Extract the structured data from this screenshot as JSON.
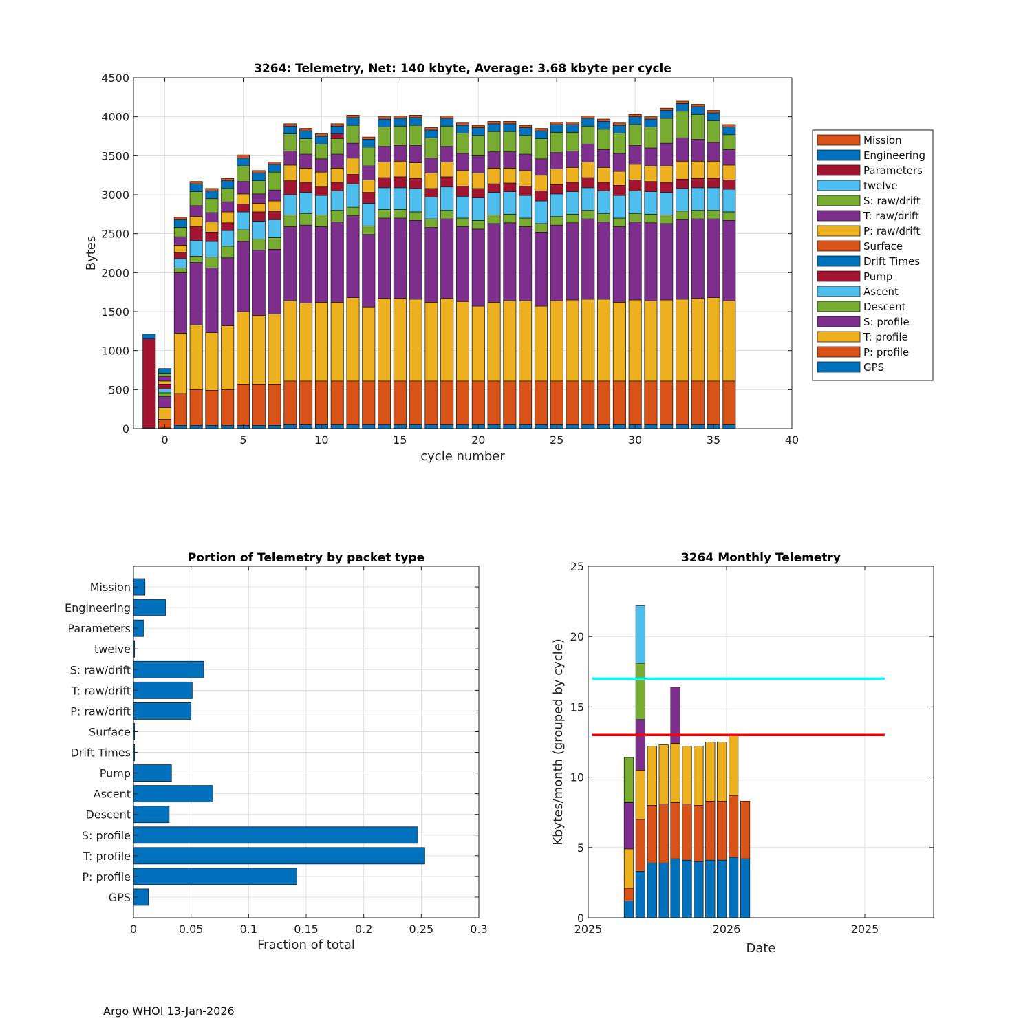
{
  "footer": "Argo WHOI 13-Jan-2026",
  "colors": {
    "GPS": "#0072BD",
    "P: profile": "#D95319",
    "T: profile": "#EDB120",
    "S: profile": "#7E2F8E",
    "Descent": "#77AC30",
    "Ascent": "#4DBEEE",
    "Pump": "#A2142F",
    "Drift Times": "#0072BD",
    "Surface": "#D95319",
    "P: raw/drift": "#EDB120",
    "T: raw/drift": "#7E2F8E",
    "S: raw/drift": "#77AC30",
    "twelve": "#4DBEEE",
    "Parameters": "#A2142F",
    "Engineering": "#0072BD",
    "Mission": "#D95319",
    "cyan_line": "#00FFFF",
    "red_line": "#FF0000"
  },
  "chart_data": [
    {
      "id": "telemetry",
      "type": "bar",
      "stacked": true,
      "title": "3264: Telemetry, Net:    140 kbyte,  Average: 3.68 kbyte per cycle",
      "xlabel": "cycle number",
      "ylabel": "Bytes",
      "xlim": [
        -2,
        40
      ],
      "ylim": [
        0,
        4500
      ],
      "xticks": [
        0,
        5,
        10,
        15,
        20,
        25,
        30,
        35,
        40
      ],
      "yticks": [
        0,
        500,
        1000,
        1500,
        2000,
        2500,
        3000,
        3500,
        4000,
        4500
      ],
      "grid": true,
      "legend_position": "outside-right",
      "legend": [
        "Mission",
        "Engineering",
        "Parameters",
        "twelve",
        "S: raw/drift",
        "T: raw/drift",
        "P: raw/drift",
        "Surface",
        "Drift Times",
        "Pump",
        "Ascent",
        "Descent",
        "S: profile",
        "T: profile",
        "P: profile",
        "GPS"
      ],
      "stack_order": [
        "GPS",
        "P: profile",
        "T: profile",
        "S: profile",
        "Descent",
        "Ascent",
        "Pump",
        "Drift Times",
        "Surface",
        "P: raw/drift",
        "T: raw/drift",
        "S: raw/drift",
        "twelve",
        "Parameters",
        "Engineering",
        "Mission"
      ],
      "cycles": [
        -1,
        0,
        1,
        2,
        3,
        4,
        5,
        6,
        7,
        8,
        9,
        10,
        11,
        12,
        13,
        14,
        15,
        16,
        17,
        18,
        19,
        20,
        21,
        22,
        23,
        24,
        25,
        26,
        27,
        28,
        29,
        30,
        31,
        32,
        33,
        34,
        35,
        36
      ],
      "series": {
        "GPS": [
          10,
          10,
          40,
          40,
          40,
          40,
          40,
          40,
          40,
          50,
          50,
          50,
          50,
          50,
          50,
          50,
          50,
          50,
          50,
          50,
          50,
          50,
          50,
          50,
          50,
          50,
          50,
          50,
          50,
          50,
          50,
          50,
          50,
          50,
          50,
          50,
          50,
          50
        ],
        "P: profile": [
          0,
          110,
          410,
          460,
          450,
          460,
          530,
          530,
          530,
          560,
          560,
          560,
          560,
          560,
          560,
          560,
          560,
          560,
          560,
          560,
          560,
          560,
          560,
          560,
          560,
          560,
          560,
          560,
          560,
          560,
          560,
          560,
          560,
          560,
          560,
          560,
          560,
          560
        ],
        "T: profile": [
          0,
          150,
          770,
          830,
          740,
          820,
          930,
          880,
          900,
          1030,
          1000,
          1010,
          1010,
          1070,
          950,
          1060,
          1060,
          1050,
          1010,
          1060,
          1020,
          960,
          1010,
          1030,
          1030,
          960,
          1030,
          1040,
          1050,
          1050,
          1010,
          1040,
          1030,
          1040,
          1050,
          1060,
          1070,
          1030
        ],
        "S: profile": [
          0,
          140,
          780,
          800,
          830,
          870,
          900,
          840,
          830,
          950,
          1000,
          970,
          1030,
          1050,
          930,
          1030,
          1030,
          1010,
          960,
          1020,
          960,
          990,
          1010,
          1000,
          950,
          950,
          970,
          990,
          1030,
          990,
          970,
          1000,
          1000,
          980,
          1020,
          1020,
          1010,
          1030
        ],
        "Descent": [
          0,
          50,
          60,
          80,
          140,
          150,
          150,
          140,
          150,
          150,
          150,
          150,
          150,
          110,
          110,
          110,
          110,
          110,
          110,
          110,
          110,
          110,
          110,
          110,
          110,
          110,
          110,
          110,
          110,
          110,
          110,
          110,
          110,
          110,
          110,
          110,
          110,
          110
        ],
        "Ascent": [
          0,
          50,
          120,
          200,
          200,
          200,
          230,
          230,
          230,
          260,
          270,
          250,
          250,
          300,
          290,
          280,
          280,
          300,
          280,
          300,
          280,
          290,
          290,
          290,
          290,
          290,
          290,
          290,
          290,
          290,
          290,
          290,
          290,
          290,
          290,
          290,
          290,
          290
        ],
        "Pump": [
          1140,
          60,
          80,
          180,
          120,
          100,
          100,
          120,
          110,
          180,
          130,
          110,
          110,
          120,
          140,
          130,
          140,
          130,
          110,
          130,
          130,
          120,
          110,
          110,
          120,
          130,
          120,
          120,
          130,
          110,
          130,
          140,
          130,
          130,
          120,
          120,
          120,
          120
        ],
        "Drift Times": [
          0,
          0,
          0,
          0,
          0,
          0,
          0,
          0,
          0,
          0,
          0,
          0,
          0,
          0,
          0,
          0,
          0,
          0,
          0,
          0,
          0,
          0,
          0,
          0,
          0,
          0,
          0,
          0,
          0,
          0,
          0,
          0,
          0,
          0,
          0,
          0,
          0,
          0
        ],
        "Surface": [
          0,
          0,
          0,
          0,
          0,
          0,
          0,
          0,
          0,
          0,
          0,
          0,
          0,
          0,
          0,
          0,
          0,
          0,
          0,
          0,
          0,
          0,
          0,
          0,
          0,
          0,
          0,
          0,
          0,
          0,
          0,
          0,
          0,
          0,
          0,
          0,
          0,
          0
        ],
        "P: raw/drift": [
          0,
          40,
          90,
          130,
          130,
          140,
          130,
          110,
          130,
          200,
          180,
          190,
          180,
          210,
          160,
          200,
          200,
          200,
          200,
          190,
          200,
          200,
          200,
          190,
          200,
          200,
          200,
          190,
          200,
          190,
          180,
          200,
          200,
          210,
          230,
          220,
          220,
          190
        ],
        "T: raw/drift": [
          0,
          60,
          110,
          140,
          120,
          130,
          160,
          120,
          140,
          180,
          180,
          170,
          180,
          190,
          180,
          200,
          200,
          220,
          190,
          200,
          220,
          220,
          210,
          210,
          210,
          210,
          210,
          210,
          230,
          230,
          230,
          240,
          230,
          290,
          300,
          280,
          240,
          200
        ],
        "S: raw/drift": [
          0,
          40,
          120,
          180,
          180,
          170,
          200,
          170,
          230,
          220,
          200,
          190,
          200,
          230,
          240,
          250,
          250,
          260,
          260,
          260,
          260,
          260,
          260,
          260,
          240,
          260,
          260,
          240,
          230,
          260,
          260,
          270,
          270,
          320,
          340,
          320,
          280,
          190
        ],
        "twelve": [
          0,
          0,
          0,
          0,
          0,
          0,
          0,
          0,
          0,
          0,
          0,
          0,
          0,
          0,
          0,
          0,
          0,
          0,
          0,
          0,
          0,
          0,
          0,
          0,
          0,
          0,
          0,
          0,
          0,
          0,
          0,
          0,
          0,
          0,
          0,
          0,
          0,
          0
        ],
        "Parameters": [
          0,
          0,
          0,
          0,
          0,
          0,
          0,
          0,
          0,
          0,
          0,
          0,
          60,
          0,
          0,
          0,
          0,
          0,
          0,
          0,
          0,
          0,
          0,
          0,
          0,
          0,
          0,
          0,
          0,
          0,
          0,
          0,
          0,
          0,
          0,
          0,
          0,
          0
        ],
        "Engineering": [
          60,
          60,
          100,
          100,
          100,
          100,
          100,
          100,
          100,
          100,
          100,
          100,
          100,
          100,
          100,
          100,
          100,
          100,
          100,
          100,
          100,
          100,
          100,
          100,
          100,
          100,
          100,
          100,
          100,
          100,
          100,
          100,
          100,
          100,
          100,
          100,
          100,
          100
        ],
        "Mission": [
          0,
          0,
          30,
          30,
          30,
          30,
          40,
          30,
          30,
          30,
          30,
          30,
          30,
          30,
          30,
          30,
          30,
          30,
          30,
          30,
          30,
          30,
          30,
          30,
          30,
          30,
          30,
          30,
          30,
          30,
          30,
          30,
          30,
          30,
          30,
          30,
          30,
          30
        ]
      }
    },
    {
      "id": "portion",
      "type": "bar",
      "orientation": "horizontal",
      "title": "Portion of Telemetry by packet type",
      "xlabel": "Fraction of total",
      "xlim": [
        0,
        0.3
      ],
      "xticks": [
        0,
        0.05,
        0.1,
        0.15,
        0.2,
        0.25,
        0.3
      ],
      "xtick_labels": [
        "0",
        "0.05",
        "0.1",
        "0.15",
        "0.2",
        "0.25",
        "0.3"
      ],
      "grid": true,
      "categories": [
        "GPS",
        "P: profile",
        "T: profile",
        "S: profile",
        "Descent",
        "Ascent",
        "Pump",
        "Drift Times",
        "Surface",
        "P: raw/drift",
        "T: raw/drift",
        "S: raw/drift",
        "twelve",
        "Parameters",
        "Engineering",
        "Mission"
      ],
      "values": [
        0.013,
        0.142,
        0.253,
        0.247,
        0.031,
        0.069,
        0.033,
        0.001,
        0.001,
        0.05,
        0.051,
        0.061,
        0.001,
        0.009,
        0.028,
        0.01
      ]
    },
    {
      "id": "monthly",
      "type": "bar",
      "stacked": true,
      "title": "3264 Monthly Telemetry",
      "xlabel": "Date",
      "ylabel": "Kbytes/month (grouped by cycle)",
      "ylim": [
        0,
        25
      ],
      "yticks": [
        0,
        5,
        10,
        15,
        20,
        25
      ],
      "xtick_labels": [
        "2025",
        "2026",
        "2025"
      ],
      "grid": true,
      "stack_colors": [
        "#0072BD",
        "#D95319",
        "#EDB120",
        "#7E2F8E",
        "#77AC30",
        "#4DBEEE"
      ],
      "months": [
        [
          1.2,
          0.9,
          2.8,
          3.3,
          3.2,
          0
        ],
        [
          3.3,
          3.7,
          3.5,
          3.6,
          4.0,
          4.1
        ],
        [
          3.9,
          4.1,
          4.2,
          0,
          0,
          0
        ],
        [
          3.9,
          4.2,
          4.2,
          0,
          0,
          0
        ],
        [
          4.2,
          4.0,
          4.2,
          4.0,
          0,
          0
        ],
        [
          4.1,
          4.0,
          4.1,
          0,
          0,
          0
        ],
        [
          4.0,
          4.0,
          4.2,
          0,
          0,
          0
        ],
        [
          4.1,
          4.2,
          4.2,
          0,
          0,
          0
        ],
        [
          4.1,
          4.2,
          4.2,
          0,
          0,
          0
        ],
        [
          4.3,
          4.4,
          4.3,
          0,
          0,
          0
        ],
        [
          4.2,
          4.1,
          0,
          0,
          0,
          0
        ]
      ],
      "reference_lines": [
        {
          "value": 17,
          "color": "#00FFFF"
        },
        {
          "value": 13,
          "color": "#FF0000"
        }
      ]
    }
  ]
}
